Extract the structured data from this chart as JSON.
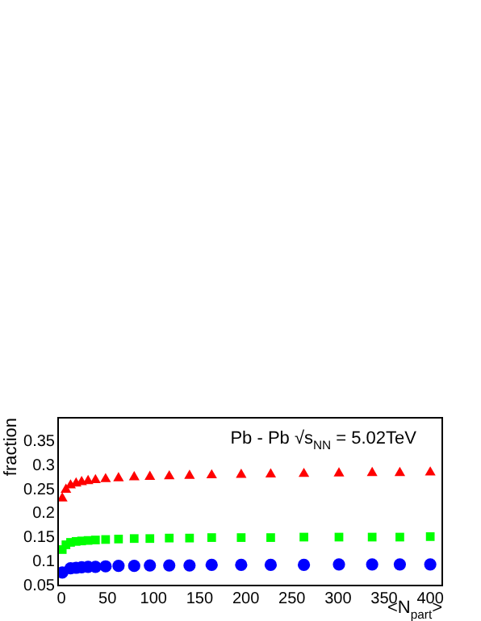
{
  "chart_data": {
    "type": "scatter",
    "annotations": [
      "Pb - Pb √s$_{NN}$ = 5.02TeV"
    ],
    "xlabel": "<N$_{part}$>",
    "ylabel": "fraction",
    "x": [
      1,
      5,
      10,
      16,
      22,
      29,
      37,
      48,
      62,
      79,
      96,
      117,
      139,
      163,
      195,
      227,
      263,
      301,
      337,
      367,
      400
    ],
    "series": [
      {
        "color": "#ff0000",
        "marker": "triangle",
        "values": [
          0.232,
          0.25,
          0.259,
          0.263,
          0.266,
          0.268,
          0.27,
          0.272,
          0.274,
          0.276,
          0.277,
          0.278,
          0.279,
          0.28,
          0.281,
          0.282,
          0.283,
          0.284,
          0.285,
          0.285,
          0.286
        ]
      },
      {
        "color": "#00ff00",
        "marker": "square",
        "values": [
          0.125,
          0.135,
          0.14,
          0.142,
          0.143,
          0.144,
          0.145,
          0.146,
          0.147,
          0.148,
          0.148,
          0.149,
          0.149,
          0.15,
          0.15,
          0.15,
          0.151,
          0.151,
          0.151,
          0.151,
          0.152
        ]
      },
      {
        "color": "#0000ff",
        "marker": "circle",
        "x": [
          1,
          10,
          16,
          22,
          29,
          37,
          48,
          62,
          79,
          96,
          117,
          139,
          163,
          195,
          227,
          263,
          301,
          337,
          367,
          400
        ],
        "values": [
          0.077,
          0.086,
          0.087,
          0.088,
          0.089,
          0.089,
          0.09,
          0.091,
          0.091,
          0.092,
          0.092,
          0.092,
          0.093,
          0.093,
          0.093,
          0.093,
          0.094,
          0.094,
          0.094,
          0.094
        ]
      }
    ],
    "xlim": [
      -3.5,
      413
    ],
    "xticks": [
      0,
      50,
      100,
      150,
      200,
      250,
      300,
      350,
      400
    ],
    "ylim": [
      0.05,
      0.4
    ],
    "yticks": [
      0.05,
      0.1,
      0.15,
      0.2,
      0.25,
      0.3,
      0.35
    ],
    "grid": false,
    "legend": false
  }
}
